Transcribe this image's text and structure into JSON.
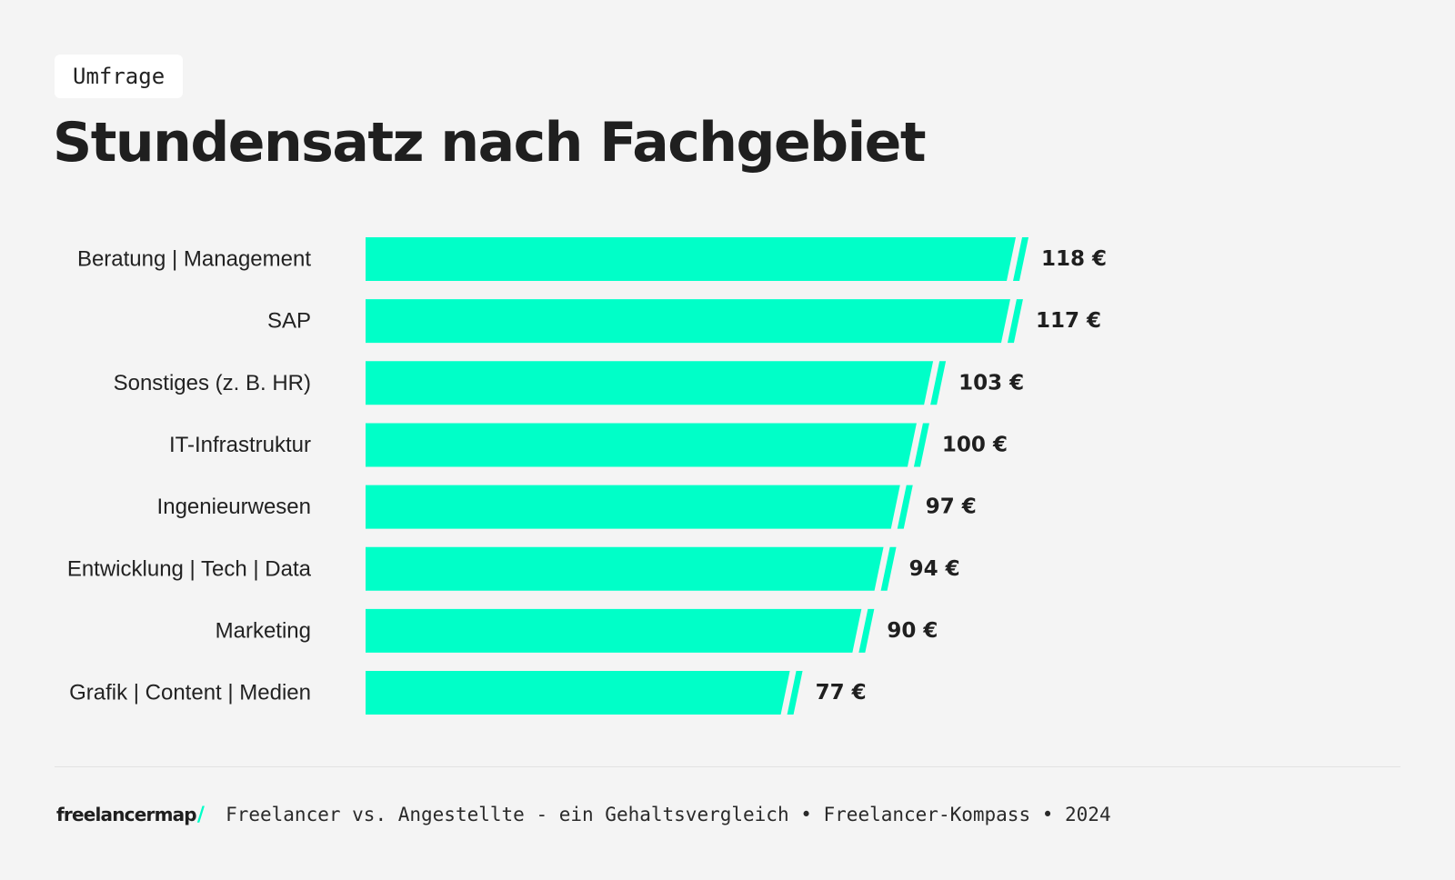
{
  "header": {
    "tag": "Umfrage",
    "title": "Stundensatz nach Fachgebiet"
  },
  "colors": {
    "bar": "#00ffc8",
    "background": "#f4f4f4",
    "text": "#1f1f1f"
  },
  "chart_data": {
    "type": "bar",
    "orientation": "horizontal",
    "title": "Stundensatz nach Fachgebiet",
    "categories": [
      "Beratung | Management",
      "SAP",
      "Sonstiges (z. B. HR)",
      "IT-Infrastruktur",
      "Ingenieurwesen",
      "Entwicklung | Tech | Data",
      "Marketing",
      "Grafik | Content | Medien"
    ],
    "values": [
      118,
      117,
      103,
      100,
      97,
      94,
      90,
      77
    ],
    "value_labels": [
      "118 €",
      "117 €",
      "103 €",
      "100 €",
      "97 €",
      "94 €",
      "90 €",
      "77 €"
    ],
    "unit": "€",
    "xlabel": "",
    "ylabel": "",
    "grid": false,
    "legend": "none"
  },
  "footer": {
    "logo_text": "freelancermap",
    "logo_slash": "/",
    "source": "Freelancer vs. Angestellte - ein Gehaltsvergleich • Freelancer-Kompass • 2024"
  }
}
